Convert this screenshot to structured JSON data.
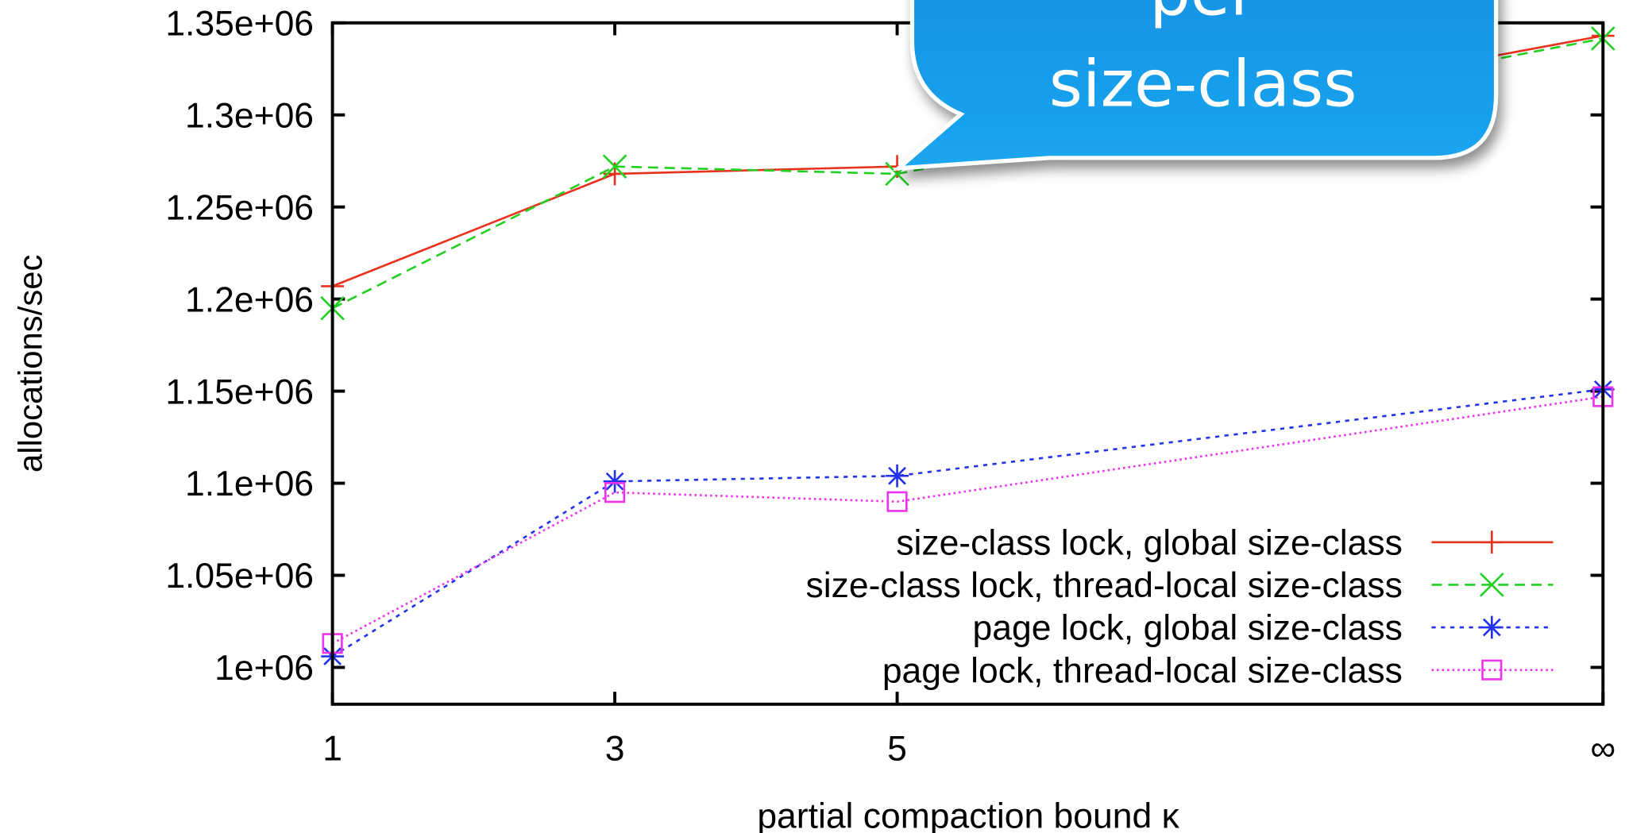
{
  "chart_data": {
    "type": "line",
    "x_label": "partial compaction bound κ",
    "y_label": "allocations/sec",
    "annotation": [
      "per",
      "size-class"
    ],
    "x": [
      1,
      3,
      5,
      10
    ],
    "xlim": [
      1,
      10
    ],
    "xticks": [
      1,
      3,
      5,
      {
        "value": 10,
        "label": "∞"
      }
    ],
    "ylim": [
      980000,
      1350000
    ],
    "yticks": [
      {
        "value": 1000000,
        "label": "1e+06"
      },
      {
        "value": 1050000,
        "label": "1.05e+06"
      },
      {
        "value": 1100000,
        "label": "1.1e+06"
      },
      {
        "value": 1150000,
        "label": "1.15e+06"
      },
      {
        "value": 1200000,
        "label": "1.2e+06"
      },
      {
        "value": 1250000,
        "label": "1.25e+06"
      },
      {
        "value": 1300000,
        "label": "1.3e+06"
      },
      {
        "value": 1350000,
        "label": "1.35e+06"
      }
    ],
    "legend": "lower right",
    "series": [
      {
        "name": "size-class lock, global size-class",
        "color": "#e8321e",
        "dash": "none",
        "marker": "plus",
        "values": [
          1207000,
          1268000,
          1272000,
          1343000
        ]
      },
      {
        "name": "size-class lock, thread-local size-class",
        "color": "#22d022",
        "dash": "10 6",
        "marker": "cross",
        "values": [
          1195000,
          1272000,
          1268000,
          1341500
        ]
      },
      {
        "name": "page lock, global size-class",
        "color": "#2233ee",
        "dash": "4 5",
        "marker": "star",
        "values": [
          1006000,
          1101000,
          1104000,
          1151000
        ]
      },
      {
        "name": "page lock, thread-local size-class",
        "color": "#ee33ee",
        "dash": "2 3",
        "marker": "square",
        "values": [
          1013000,
          1095000,
          1090000,
          1147000
        ]
      }
    ]
  }
}
